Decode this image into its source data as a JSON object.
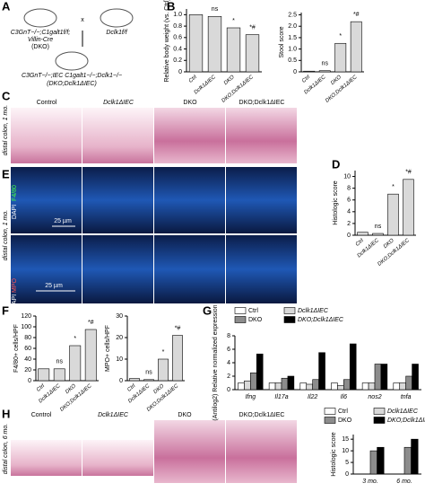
{
  "figure": {
    "panels": [
      "A",
      "B",
      "C",
      "D",
      "E",
      "F",
      "G",
      "H"
    ],
    "A": {
      "parent1": "C3GnT−/−;C1galt1f/f;",
      "parent1b": "Villin-Cre",
      "parent1c": "(DKO)",
      "cross": "x",
      "parent2": "Dclk1f/f",
      "offspring": "C3GnT−/−;IEC C1galt1−/−;Dclk1−/−",
      "offspringb": "(DKO;Dclk1ΔIEC)"
    },
    "C": {
      "columns": [
        "Control",
        "Dclk1ΔIEC",
        "DKO",
        "DKO;Dclk1ΔIEC"
      ],
      "side": "distal colon, 1 mo."
    },
    "E": {
      "stain1": "F4/80",
      "stain2": "MPO",
      "dapi": "DAPI",
      "scale1": "25 µm",
      "scale2": "25 µm",
      "side": "distal colon, 1 mo."
    },
    "H": {
      "columns": [
        "Control",
        "Dclk1ΔIEC",
        "DKO",
        "DKO;Dclk1ΔIEC"
      ],
      "side": "distal colon, 6 mo."
    }
  },
  "chart_data": [
    {
      "type": "bar",
      "ylabel": "Relative body weight (vs. Ctrl)",
      "categories": [
        "Ctrl",
        "Dclk1ΔIEC",
        "DKO",
        "DKO;Dclk1ΔIEC"
      ],
      "values": [
        1.0,
        0.97,
        0.77,
        0.65
      ],
      "annotations": [
        null,
        "ns",
        "*",
        "*#"
      ],
      "color": "#d9d9d9",
      "ylim": [
        0,
        1.1
      ],
      "yticks": [
        0,
        0.2,
        0.4,
        0.6,
        0.8,
        {
          "value": 1,
          "label": "1.0"
        }
      ]
    },
    {
      "type": "bar",
      "ylabel": "Stool score",
      "categories": [
        "Ctrl",
        "Dclk1ΔIEC",
        "DKO",
        "DKO;Dclk1ΔIEC"
      ],
      "values": [
        0.03,
        0.05,
        1.25,
        2.2
      ],
      "annotations": [
        null,
        "ns",
        "*",
        "*#"
      ],
      "color": "#d9d9d9",
      "ylim": [
        0,
        2.6
      ],
      "yticks": [
        0,
        0.5,
        {
          "value": 1,
          "label": "1.0"
        },
        1.5,
        {
          "value": 2,
          "label": "2.0"
        },
        2.5
      ]
    },
    {
      "type": "bar",
      "ylabel": "Histologic score",
      "categories": [
        "Ctrl",
        "Dclk1ΔIEC",
        "DKO",
        "DKO;Dclk1ΔIEC"
      ],
      "values": [
        0.5,
        0.3,
        7,
        9.5
      ],
      "annotations": [
        null,
        "ns",
        "*",
        "*#"
      ],
      "color": "#d9d9d9",
      "ylim": [
        0,
        11
      ],
      "yticks": [
        0,
        2,
        4,
        6,
        8,
        10
      ]
    },
    {
      "type": "bar",
      "ylabel": "F4/80+ cells/HPF",
      "categories": [
        "Ctrl",
        "Dclk1ΔIEC",
        "DKO",
        "DKO;Dclk1ΔIEC"
      ],
      "values": [
        22,
        22,
        65,
        95
      ],
      "annotations": [
        null,
        "ns",
        "*",
        "*#"
      ],
      "color": "#d9d9d9",
      "ylim": [
        0,
        120
      ],
      "yticks": [
        0,
        20,
        40,
        60,
        80,
        100,
        120
      ]
    },
    {
      "type": "bar",
      "ylabel": "MPO+ cells/HPF",
      "categories": [
        "Ctrl",
        "Dclk1ΔIEC",
        "DKO",
        "DKO;Dclk1ΔIEC"
      ],
      "values": [
        1,
        0.5,
        10,
        21
      ],
      "annotations": [
        null,
        "ns",
        "*",
        "*#"
      ],
      "color": "#d9d9d9",
      "ylim": [
        0,
        30
      ],
      "yticks": [
        0,
        10,
        20,
        30
      ]
    },
    {
      "type": "bar",
      "ylabel": "(Antilog2) Relative normalized expression",
      "categories": [
        "Ifng",
        "Il17a",
        "Il22",
        "Il6",
        "nos2",
        "tnfa"
      ],
      "series": [
        {
          "name": "Ctrl",
          "color": "#ffffff",
          "values": [
            1,
            1,
            1,
            1,
            1,
            1
          ]
        },
        {
          "name": "Dclk1ΔIEC",
          "color": "#d9d9d9",
          "values": [
            1.3,
            1,
            0.8,
            0.6,
            1,
            1
          ]
        },
        {
          "name": "DKO",
          "color": "#8c8c8c",
          "values": [
            2.5,
            1.7,
            1.5,
            1.5,
            3.8,
            2
          ]
        },
        {
          "name": "DKO;Dclk1ΔIEC",
          "color": "#000000",
          "values": [
            5.3,
            2,
            5.5,
            6.8,
            3.8,
            3.8
          ]
        }
      ],
      "ylim": [
        0,
        8
      ],
      "yticks": [
        0,
        2,
        4,
        6,
        8
      ]
    },
    {
      "type": "bar",
      "ylabel": "Histologic score",
      "categories": [
        "3 mo.",
        "6 mo."
      ],
      "series": [
        {
          "name": "Ctrl",
          "color": "#ffffff",
          "values": [
            0,
            0
          ]
        },
        {
          "name": "Dclk1ΔIEC",
          "color": "#d9d9d9",
          "values": [
            0,
            0
          ]
        },
        {
          "name": "DKO",
          "color": "#8c8c8c",
          "values": [
            10,
            11.5
          ]
        },
        {
          "name": "DKO;Dclk1ΔIEC",
          "color": "#000000",
          "values": [
            11.5,
            15
          ]
        }
      ],
      "ylim": [
        0,
        17
      ],
      "yticks": [
        0,
        5,
        10,
        15
      ]
    }
  ]
}
